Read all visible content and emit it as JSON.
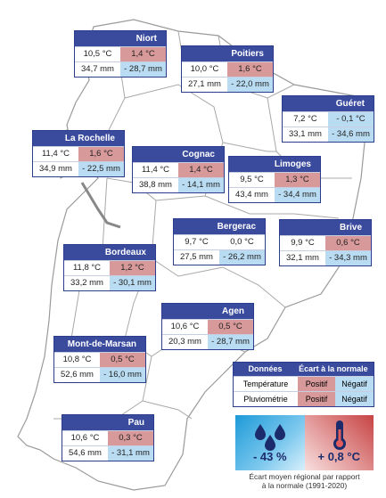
{
  "stations": [
    {
      "id": "niort",
      "name": "Niort",
      "temp": "10,5 °C",
      "temp_dev": "1,4 °C",
      "temp_sign": "pos",
      "rain": "34,7 mm",
      "rain_dev": "- 28,7 mm",
      "rain_sign": "neg"
    },
    {
      "id": "poitiers",
      "name": "Poitiers",
      "temp": "10,0 °C",
      "temp_dev": "1,6 °C",
      "temp_sign": "pos",
      "rain": "27,1 mm",
      "rain_dev": "- 22,0 mm",
      "rain_sign": "neg"
    },
    {
      "id": "gueret",
      "name": "Guéret",
      "temp": "7,2 °C",
      "temp_dev": "- 0,1 °C",
      "temp_sign": "neg",
      "rain": "33,1 mm",
      "rain_dev": "- 34,6 mm",
      "rain_sign": "neg"
    },
    {
      "id": "la-rochelle",
      "name": "La Rochelle",
      "temp": "11,4 °C",
      "temp_dev": "1,6 °C",
      "temp_sign": "pos",
      "rain": "34,9 mm",
      "rain_dev": "- 22,5 mm",
      "rain_sign": "neg"
    },
    {
      "id": "cognac",
      "name": "Cognac",
      "temp": "11,4 °C",
      "temp_dev": "1,4 °C",
      "temp_sign": "pos",
      "rain": "38,8 mm",
      "rain_dev": "- 14,1 mm",
      "rain_sign": "neg"
    },
    {
      "id": "limoges",
      "name": "Limoges",
      "temp": "9,5 °C",
      "temp_dev": "1,3 °C",
      "temp_sign": "pos",
      "rain": "43,4 mm",
      "rain_dev": "- 34,4 mm",
      "rain_sign": "neg"
    },
    {
      "id": "bergerac",
      "name": "Bergerac",
      "temp": "9,7 °C",
      "temp_dev": "0,0 °C",
      "temp_sign": "none",
      "rain": "27,5 mm",
      "rain_dev": "- 26,2 mm",
      "rain_sign": "neg"
    },
    {
      "id": "brive",
      "name": "Brive",
      "temp": "9,9 °C",
      "temp_dev": "0,6 °C",
      "temp_sign": "pos",
      "rain": "32,1 mm",
      "rain_dev": "- 34,3 mm",
      "rain_sign": "neg"
    },
    {
      "id": "bordeaux",
      "name": "Bordeaux",
      "temp": "11,8 °C",
      "temp_dev": "1,2 °C",
      "temp_sign": "pos",
      "rain": "33,2 mm",
      "rain_dev": "- 30,1 mm",
      "rain_sign": "neg"
    },
    {
      "id": "agen",
      "name": "Agen",
      "temp": "10,6 °C",
      "temp_dev": "0,5 °C",
      "temp_sign": "pos",
      "rain": "20,3 mm",
      "rain_dev": "- 28,7 mm",
      "rain_sign": "neg"
    },
    {
      "id": "mont-de-marsan",
      "name": "Mont-de-Marsan",
      "temp": "10,8 °C",
      "temp_dev": "0,5 °C",
      "temp_sign": "pos",
      "rain": "52,6 mm",
      "rain_dev": "- 16,0 mm",
      "rain_sign": "neg"
    },
    {
      "id": "pau",
      "name": "Pau",
      "temp": "10,6 °C",
      "temp_dev": "0,3 °C",
      "temp_sign": "pos",
      "rain": "54,6 mm",
      "rain_dev": "- 31,1 mm",
      "rain_sign": "neg"
    }
  ],
  "legend": {
    "col_data": "Données",
    "col_dev": "Écart à la normale",
    "row_temp": "Température",
    "row_rain": "Pluviométrie",
    "positive": "Positif",
    "negative": "Négatif"
  },
  "summary": {
    "rain_value": "- 43 %",
    "temp_value": "+ 0,8 °C",
    "rain_icon": "raindrops-icon",
    "temp_icon": "thermometer-icon",
    "caption_line1": "Écart moyen régional par rapport",
    "caption_line2": "à la normale (1991-2020)"
  },
  "colors": {
    "positive": "#d8999a",
    "negative": "#b9dcf2",
    "header": "#3a4b9e",
    "sea": "#ffffff"
  }
}
